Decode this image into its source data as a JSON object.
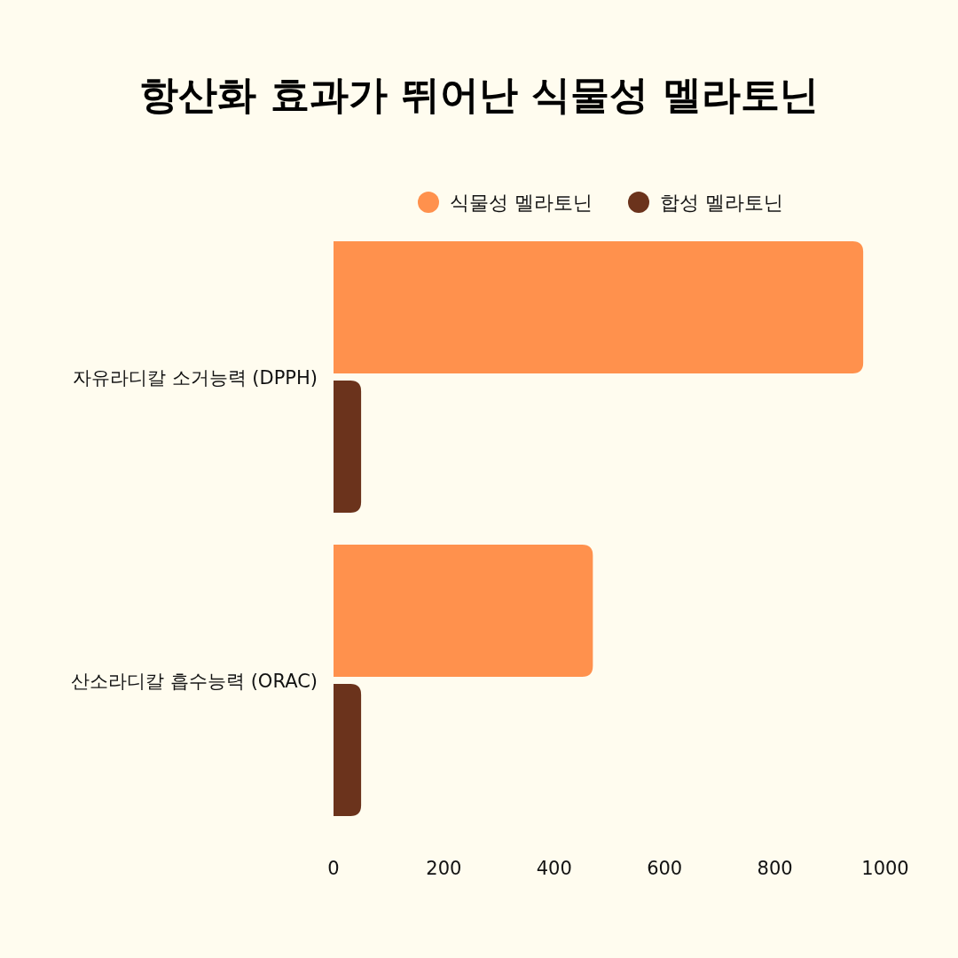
{
  "chart_data": {
    "type": "bar",
    "orientation": "horizontal",
    "title": "항산화 효과가 뛰어난 식물성 멜라토닌",
    "categories": [
      "자유라디칼 소거능력 (DPPH)",
      "산소라디칼 흡수능력 (ORAC)"
    ],
    "series": [
      {
        "name": "식물성 멜라토닌",
        "color": "#ff914d",
        "values": [
          960,
          470
        ]
      },
      {
        "name": "합성 멜라토닌",
        "color": "#6b331c",
        "values": [
          50,
          50
        ]
      }
    ],
    "xlim": [
      0,
      1000
    ],
    "xticks": [
      0,
      200,
      400,
      600,
      800,
      1000
    ],
    "grid": false,
    "legend": "top"
  }
}
